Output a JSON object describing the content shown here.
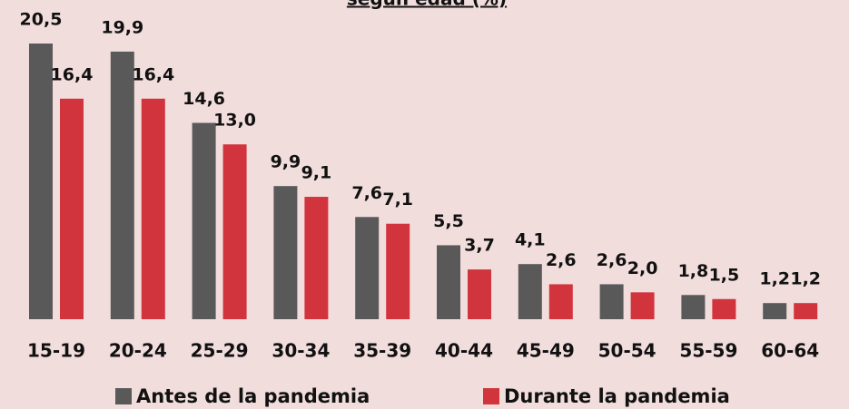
{
  "chart_data": {
    "type": "bar",
    "title": "según edad (%)",
    "categories": [
      "15-19",
      "20-24",
      "25-29",
      "30-34",
      "35-39",
      "40-44",
      "45-49",
      "50-54",
      "55-59",
      "60-64"
    ],
    "series": [
      {
        "name": "Antes de la pandemia",
        "color": "#595959",
        "values": [
          20.5,
          19.9,
          14.6,
          9.9,
          7.6,
          5.5,
          4.1,
          2.6,
          1.8,
          1.2
        ],
        "value_labels": [
          "20,5",
          "19,9",
          "14,6",
          "9,9",
          "7,6",
          "5,5",
          "4,1",
          "2,6",
          "1,8",
          "1,2"
        ]
      },
      {
        "name": "Durante la pandemia",
        "color": "#d1343c",
        "values": [
          16.4,
          16.4,
          13.0,
          9.1,
          7.1,
          3.7,
          2.6,
          2.0,
          1.5,
          1.2
        ],
        "value_labels": [
          "16,4",
          "16,4",
          "13,0",
          "9,1",
          "7,1",
          "3,7",
          "2,6",
          "2,0",
          "1,5",
          "1,2"
        ]
      }
    ]
  }
}
